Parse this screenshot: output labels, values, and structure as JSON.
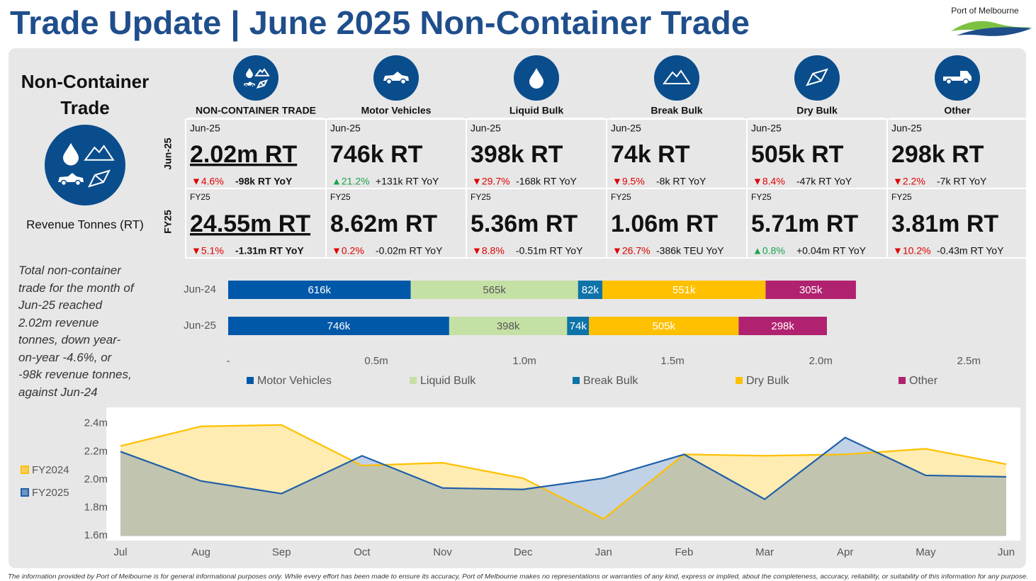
{
  "header": {
    "title": "Trade Update | June 2025 Non-Container Trade",
    "logo": "Port of Melbourne"
  },
  "summary": {
    "title_lines": [
      "Non-Container",
      "Trade"
    ],
    "unit": "Revenue Tonnes (RT)",
    "rows": [
      "Jun-25",
      "FY25"
    ],
    "text": "Total non-container trade for the month of Jun-25 reached 2.02m revenue tonnes, down year-on-year -4.6%, or -98k revenue tonnes, against Jun-24"
  },
  "kpis": [
    {
      "name": "NON-CONTAINER TRADE",
      "month": {
        "period": "Jun-25",
        "value": "2.02m RT",
        "change": "▼4.6%",
        "trend": "down",
        "yoy": "-98k RT YoY"
      },
      "year": {
        "period": "FY25",
        "value": "24.55m RT",
        "change": "▼5.1%",
        "trend": "down",
        "yoy": "-1.31m RT YoY"
      }
    },
    {
      "name": "Motor Vehicles",
      "month": {
        "period": "Jun-25",
        "value": "746k RT",
        "change": "▲21.2%",
        "trend": "up",
        "yoy": "+131k RT YoY"
      },
      "year": {
        "period": "FY25",
        "value": "8.62m RT",
        "change": "▼0.2%",
        "trend": "down",
        "yoy": "-0.02m RT YoY"
      }
    },
    {
      "name": "Liquid Bulk",
      "month": {
        "period": "Jun-25",
        "value": "398k RT",
        "change": "▼29.7%",
        "trend": "down",
        "yoy": "-168k RT YoY"
      },
      "year": {
        "period": "FY25",
        "value": "5.36m RT",
        "change": "▼8.8%",
        "trend": "down",
        "yoy": "-0.51m RT YoY"
      }
    },
    {
      "name": "Break Bulk",
      "month": {
        "period": "Jun-25",
        "value": "74k RT",
        "change": "▼9.5%",
        "trend": "down",
        "yoy": "-8k RT YoY"
      },
      "year": {
        "period": "FY25",
        "value": "1.06m RT",
        "change": "▼26.7%",
        "trend": "down",
        "yoy": "-386k TEU YoY"
      }
    },
    {
      "name": "Dry Bulk",
      "month": {
        "period": "Jun-25",
        "value": "505k RT",
        "change": "▼8.4%",
        "trend": "down",
        "yoy": "-47k RT YoY"
      },
      "year": {
        "period": "FY25",
        "value": "5.71m RT",
        "change": "▲0.8%",
        "trend": "up",
        "yoy": "+0.04m RT YoY"
      }
    },
    {
      "name": "Other",
      "month": {
        "period": "Jun-25",
        "value": "298k RT",
        "change": "▼2.2%",
        "trend": "down",
        "yoy": "-7k RT YoY"
      },
      "year": {
        "period": "FY25",
        "value": "3.81m RT",
        "change": "▼10.2%",
        "trend": "down",
        "yoy": "-0.43m RT YoY"
      }
    }
  ],
  "chart_data": [
    {
      "type": "bar",
      "orientation": "horizontal",
      "stacked": true,
      "legend": "bottom",
      "categories": [
        "Jun-24",
        "Jun-25"
      ],
      "series": [
        {
          "name": "Motor Vehicles",
          "color": "#0058a9",
          "values": [
            616000,
            746000
          ],
          "value_labels": [
            "616k",
            "746k"
          ]
        },
        {
          "name": "Liquid Bulk",
          "color": "#c5e0a5",
          "values": [
            565000,
            398000
          ],
          "value_labels": [
            "565k",
            "398k"
          ]
        },
        {
          "name": "Break Bulk",
          "color": "#0e73a8",
          "values": [
            82000,
            74000
          ],
          "value_labels": [
            "82k",
            "74k"
          ]
        },
        {
          "name": "Dry Bulk",
          "color": "#ffc000",
          "values": [
            551000,
            505000
          ],
          "value_labels": [
            "551k",
            "505k"
          ]
        },
        {
          "name": "Other",
          "color": "#b0226f",
          "values": [
            305000,
            298000
          ],
          "value_labels": [
            "305k",
            "298k"
          ]
        }
      ],
      "xlim": [
        0,
        2600000
      ],
      "xticks": [
        {
          "value": 0,
          "label": "-"
        },
        {
          "value": 500000,
          "label": "0.5m"
        },
        {
          "value": 1000000,
          "label": "1.0m"
        },
        {
          "value": 1500000,
          "label": "1.5m"
        },
        {
          "value": 2000000,
          "label": "2.0m"
        },
        {
          "value": 2500000,
          "label": "2.5m"
        }
      ]
    },
    {
      "type": "area",
      "legend": "left",
      "grid": false,
      "categories": [
        "Jul",
        "Aug",
        "Sep",
        "Oct",
        "Nov",
        "Dec",
        "Jan",
        "Feb",
        "Mar",
        "Apr",
        "May",
        "Jun"
      ],
      "series": [
        {
          "name": "FY2024",
          "color": "#ffc000",
          "values": [
            2240000,
            2380000,
            2390000,
            2100000,
            2120000,
            2010000,
            1720000,
            2180000,
            2170000,
            2180000,
            2220000,
            2110000
          ]
        },
        {
          "name": "FY2025",
          "color": "#1f5fa8",
          "values": [
            2200000,
            1990000,
            1900000,
            2170000,
            1940000,
            1930000,
            2010000,
            2180000,
            1860000,
            2300000,
            2030000,
            2020000
          ]
        }
      ],
      "ylim": [
        1600000,
        2500000
      ],
      "yticks": [
        {
          "value": 1600000,
          "label": "1.6m"
        },
        {
          "value": 1800000,
          "label": "1.8m"
        },
        {
          "value": 2000000,
          "label": "2.0m"
        },
        {
          "value": 2200000,
          "label": "2.2m"
        },
        {
          "value": 2400000,
          "label": "2.4m"
        }
      ]
    }
  ],
  "footer": "The information provided by Port of Melbourne is for general informational purposes only. While every effort has been made to ensure its accuracy, Port of Melbourne makes no representations or warranties of any kind, express or implied, about the completeness, accuracy, reliability, or suitability of this information for any purpose."
}
